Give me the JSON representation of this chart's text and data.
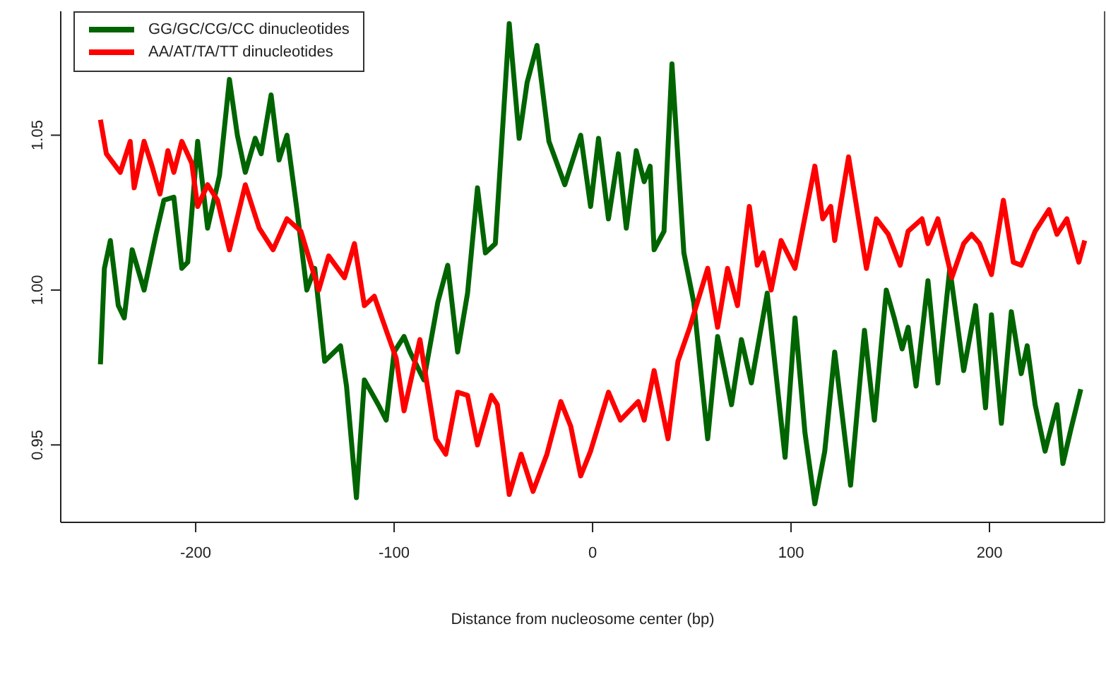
{
  "chart_data": {
    "type": "line",
    "xlabel": "Distance from nucleosome center (bp)",
    "xlim": [
      -268,
      258
    ],
    "xticks": [
      -200,
      -100,
      0,
      100,
      200
    ],
    "ylim": [
      0.925,
      1.09
    ],
    "yticks": [
      {
        "value": 0.95,
        "label": "0.95"
      },
      {
        "value": 1,
        "label": "1.00"
      },
      {
        "value": 1.05,
        "label": "1.05"
      }
    ],
    "grid": false,
    "legend": "top left",
    "marker": "none",
    "line_style": "solid",
    "series": [
      {
        "name": "GG/GC/CG/CC dinucleotides",
        "color": "#006400",
        "x": [
          -248,
          -246,
          -243,
          -239,
          -236,
          -232,
          -226,
          -220,
          -216,
          -211,
          -207,
          -204,
          -199,
          -194,
          -188,
          -183,
          -179,
          -175,
          -170,
          -167,
          -162,
          -158,
          -154,
          -149,
          -144,
          -140,
          -135,
          -127,
          -124,
          -119,
          -115,
          -108,
          -104,
          -100,
          -95,
          -92,
          -85,
          -78,
          -73,
          -68,
          -63,
          -58,
          -54,
          -49,
          -42,
          -37,
          -33,
          -28,
          -22,
          -14,
          -6,
          -1,
          3,
          8,
          13,
          17,
          22,
          26,
          29,
          31,
          36,
          40,
          46,
          51,
          58,
          63,
          70,
          75,
          80,
          88,
          97,
          102,
          107,
          112,
          117,
          122,
          130,
          137,
          142,
          148,
          152,
          156,
          159,
          163,
          169,
          174,
          180,
          187,
          193,
          198,
          201,
          206,
          211,
          216,
          219,
          223,
          228,
          234,
          237,
          241,
          246
        ],
        "values": [
          0.976,
          1.007,
          1.016,
          0.995,
          0.991,
          1.013,
          1.0,
          1.018,
          1.029,
          1.03,
          1.007,
          1.009,
          1.048,
          1.02,
          1.037,
          1.068,
          1.05,
          1.038,
          1.049,
          1.044,
          1.063,
          1.042,
          1.05,
          1.026,
          1.0,
          1.007,
          0.977,
          0.982,
          0.969,
          0.933,
          0.971,
          0.963,
          0.958,
          0.98,
          0.985,
          0.98,
          0.971,
          0.996,
          1.008,
          0.98,
          0.999,
          1.033,
          1.012,
          1.015,
          1.086,
          1.049,
          1.067,
          1.079,
          1.048,
          1.034,
          1.05,
          1.027,
          1.049,
          1.023,
          1.044,
          1.02,
          1.045,
          1.035,
          1.04,
          1.013,
          1.019,
          1.073,
          1.012,
          0.996,
          0.952,
          0.985,
          0.963,
          0.984,
          0.97,
          0.999,
          0.946,
          0.991,
          0.954,
          0.931,
          0.948,
          0.98,
          0.937,
          0.987,
          0.958,
          1.0,
          0.991,
          0.981,
          0.988,
          0.969,
          1.003,
          0.97,
          1.007,
          0.974,
          0.995,
          0.962,
          0.992,
          0.957,
          0.993,
          0.973,
          0.982,
          0.963,
          0.948,
          0.963,
          0.944,
          0.955,
          0.968
        ]
      },
      {
        "name": "AA/AT/TA/TT dinucleotides",
        "color": "#ff0000",
        "x": [
          -248,
          -245,
          -238,
          -233,
          -231,
          -226,
          -222,
          -218,
          -214,
          -211,
          -207,
          -202,
          -199,
          -194,
          -189,
          -183,
          -175,
          -168,
          -161,
          -154,
          -147,
          -138,
          -133,
          -125,
          -120,
          -115,
          -110,
          -104,
          -99,
          -95,
          -87,
          -79,
          -74,
          -68,
          -63,
          -58,
          -51,
          -48,
          -42,
          -36,
          -30,
          -23,
          -16,
          -11,
          -6,
          -1,
          8,
          14,
          23,
          26,
          31,
          38,
          43,
          49,
          58,
          63,
          68,
          73,
          79,
          83,
          86,
          90,
          95,
          102,
          112,
          116,
          120,
          122,
          129,
          138,
          143,
          149,
          155,
          159,
          166,
          169,
          174,
          181,
          187,
          191,
          195,
          201,
          207,
          212,
          216,
          223,
          230,
          234,
          239,
          245,
          248
        ],
        "values": [
          1.055,
          1.044,
          1.038,
          1.048,
          1.033,
          1.048,
          1.04,
          1.031,
          1.045,
          1.038,
          1.048,
          1.041,
          1.027,
          1.034,
          1.029,
          1.013,
          1.034,
          1.02,
          1.013,
          1.023,
          1.019,
          1.0,
          1.011,
          1.004,
          1.015,
          0.995,
          0.998,
          0.987,
          0.978,
          0.961,
          0.984,
          0.952,
          0.947,
          0.967,
          0.966,
          0.95,
          0.966,
          0.963,
          0.934,
          0.947,
          0.935,
          0.947,
          0.964,
          0.956,
          0.94,
          0.948,
          0.967,
          0.958,
          0.964,
          0.958,
          0.974,
          0.952,
          0.977,
          0.988,
          1.007,
          0.988,
          1.007,
          0.995,
          1.027,
          1.008,
          1.012,
          1.0,
          1.016,
          1.007,
          1.04,
          1.023,
          1.027,
          1.016,
          1.043,
          1.007,
          1.023,
          1.018,
          1.008,
          1.019,
          1.023,
          1.015,
          1.023,
          1.004,
          1.015,
          1.018,
          1.015,
          1.005,
          1.029,
          1.009,
          1.008,
          1.019,
          1.026,
          1.018,
          1.023,
          1.009,
          1.016
        ]
      }
    ]
  }
}
